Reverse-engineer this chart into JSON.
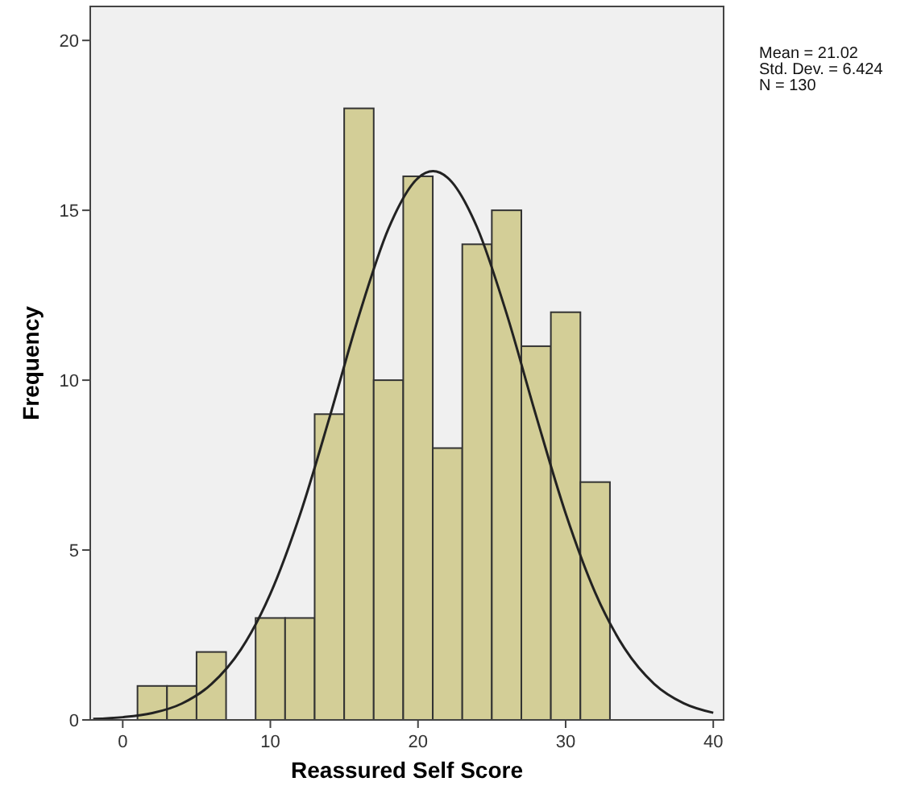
{
  "chart_data": {
    "type": "histogram",
    "xlabel": "Reassured Self Score",
    "ylabel": "Frequency",
    "bins": [
      1,
      3,
      5,
      7,
      9,
      11,
      13,
      15,
      17,
      19,
      21,
      23,
      25,
      27,
      29,
      31,
      33
    ],
    "values": [
      1,
      1,
      2,
      0,
      3,
      3,
      9,
      18,
      10,
      16,
      8,
      14,
      15,
      11,
      12,
      7
    ],
    "color": "#d3ce97",
    "series": [
      {
        "type": "line",
        "color": "#222222",
        "x": [
          -2,
          0,
          2,
          4,
          6,
          8,
          10,
          12,
          14,
          16,
          18,
          20,
          21.02,
          22,
          24,
          26,
          28,
          30,
          32,
          34,
          36,
          38,
          40
        ],
        "values": [
          0.03,
          0.08,
          0.2,
          0.48,
          1.05,
          2.07,
          3.71,
          6.03,
          8.89,
          11.9,
          14.46,
          15.95,
          16.15,
          15.96,
          14.5,
          11.96,
          8.95,
          6.08,
          3.75,
          2.1,
          1.06,
          0.49,
          0.21
        ]
      }
    ],
    "xlim": [
      -2.2,
      40.7
    ],
    "xticks": [
      0,
      10,
      20,
      30,
      40
    ],
    "ylim": [
      0,
      21
    ],
    "yticks": [
      0,
      5,
      10,
      15,
      20
    ],
    "grid": false,
    "annotations": [
      "Mean = 21.02",
      "Std. Dev. = 6.424",
      "N = 130"
    ]
  }
}
